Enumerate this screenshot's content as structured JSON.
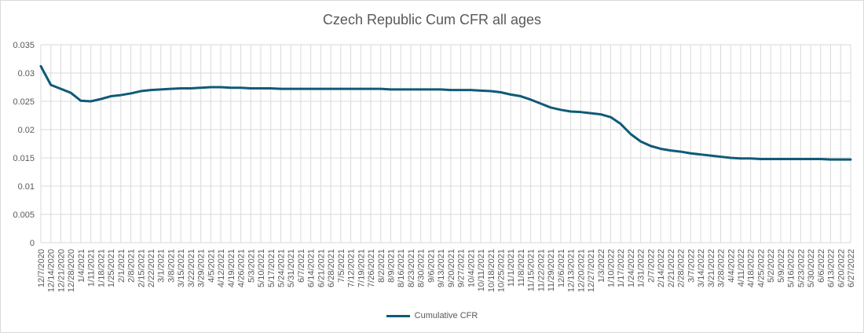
{
  "chart_data": {
    "type": "line",
    "title": "Czech Republic Cum CFR all ages",
    "xlabel": "",
    "ylabel": "",
    "ylim": [
      0,
      0.035
    ],
    "yticks": [
      "0",
      "0.005",
      "0.01",
      "0.015",
      "0.02",
      "0.025",
      "0.03",
      "0.035"
    ],
    "grid": true,
    "legend_position": "bottom",
    "series_color": "#0f5a78",
    "categories": [
      "12/7/2020",
      "12/14/2020",
      "12/21/2020",
      "12/28/2020",
      "1/4/2021",
      "1/11/2021",
      "1/18/2021",
      "1/25/2021",
      "2/1/2021",
      "2/8/2021",
      "2/15/2021",
      "2/22/2021",
      "3/1/2021",
      "3/8/2021",
      "3/15/2021",
      "3/22/2021",
      "3/29/2021",
      "4/5/2021",
      "4/12/2021",
      "4/19/2021",
      "4/26/2021",
      "5/3/2021",
      "5/10/2021",
      "5/17/2021",
      "5/24/2021",
      "5/31/2021",
      "6/7/2021",
      "6/14/2021",
      "6/21/2021",
      "6/28/2021",
      "7/5/2021",
      "7/12/2021",
      "7/19/2021",
      "7/26/2021",
      "8/2/2021",
      "8/9/2021",
      "8/16/2021",
      "8/23/2021",
      "8/30/2021",
      "9/6/2021",
      "9/13/2021",
      "9/20/2021",
      "9/27/2021",
      "10/4/2021",
      "10/11/2021",
      "10/18/2021",
      "10/25/2021",
      "11/1/2021",
      "11/8/2021",
      "11/15/2021",
      "11/22/2021",
      "11/29/2021",
      "12/6/2021",
      "12/13/2021",
      "12/20/2021",
      "12/27/2021",
      "1/3/2022",
      "1/10/2022",
      "1/17/2022",
      "1/24/2022",
      "1/31/2022",
      "2/7/2022",
      "2/14/2022",
      "2/21/2022",
      "2/28/2022",
      "3/7/2022",
      "3/14/2022",
      "3/21/2022",
      "3/28/2022",
      "4/4/2022",
      "4/11/2022",
      "4/18/2022",
      "4/25/2022",
      "5/2/2022",
      "5/9/2022",
      "5/16/2022",
      "5/23/2022",
      "5/30/2022",
      "6/6/2022",
      "6/13/2022",
      "6/20/2022",
      "6/27/2022"
    ],
    "series": [
      {
        "name": "Cumulative CFR",
        "values": [
          0.0312,
          0.0279,
          0.0272,
          0.0265,
          0.0251,
          0.025,
          0.0254,
          0.0259,
          0.0261,
          0.0264,
          0.0268,
          0.027,
          0.0271,
          0.0272,
          0.0273,
          0.0273,
          0.0274,
          0.0275,
          0.0275,
          0.0274,
          0.0274,
          0.0273,
          0.0273,
          0.0273,
          0.0272,
          0.0272,
          0.0272,
          0.0272,
          0.0272,
          0.0272,
          0.0272,
          0.0272,
          0.0272,
          0.0272,
          0.0272,
          0.0271,
          0.0271,
          0.0271,
          0.0271,
          0.0271,
          0.0271,
          0.027,
          0.027,
          0.027,
          0.0269,
          0.0268,
          0.0266,
          0.0262,
          0.0259,
          0.0253,
          0.0246,
          0.0239,
          0.0235,
          0.0232,
          0.0231,
          0.0229,
          0.0227,
          0.0222,
          0.021,
          0.0192,
          0.0179,
          0.0171,
          0.0166,
          0.0163,
          0.0161,
          0.0158,
          0.0156,
          0.0154,
          0.0152,
          0.015,
          0.0149,
          0.0149,
          0.0148,
          0.0148,
          0.0148,
          0.0148,
          0.0148,
          0.0148,
          0.0148,
          0.0147,
          0.0147,
          0.0147
        ]
      }
    ]
  }
}
